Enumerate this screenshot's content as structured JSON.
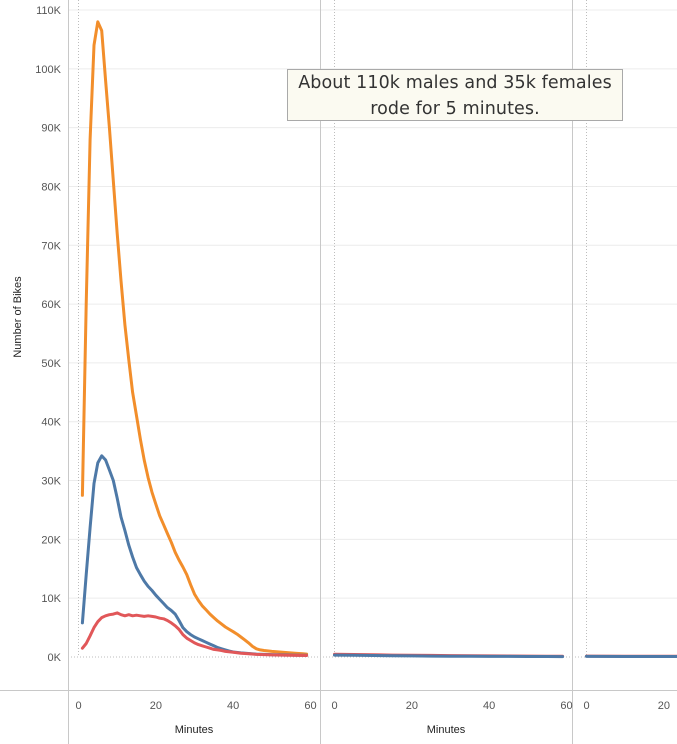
{
  "chart_data": {
    "type": "line",
    "ylabel": "Number of Bikes",
    "y_ticks": [
      "0K",
      "10K",
      "20K",
      "30K",
      "40K",
      "50K",
      "60K",
      "70K",
      "80K",
      "90K",
      "100K",
      "110K"
    ],
    "ylim": [
      0,
      110000
    ],
    "annotation": "About 110k males and 35k females rode for 5 minutes.",
    "colors": {
      "orange": "#f28e2b",
      "blue": "#4e79a7",
      "red": "#e15759"
    },
    "grid": true,
    "panels": [
      {
        "xlabel": "Minutes",
        "x_ticks": [
          "0",
          "20",
          "40",
          "60"
        ],
        "xlim": [
          -1,
          63
        ],
        "series": [
          {
            "color": "orange",
            "points": [
              [
                1,
                27500
              ],
              [
                2,
                60000
              ],
              [
                3,
                88000
              ],
              [
                4,
                104000
              ],
              [
                5,
                108000
              ],
              [
                6,
                106500
              ],
              [
                7,
                98000
              ],
              [
                8,
                90000
              ],
              [
                9,
                81000
              ],
              [
                10,
                72000
              ],
              [
                11,
                64000
              ],
              [
                12,
                56500
              ],
              [
                13,
                50500
              ],
              [
                14,
                45000
              ],
              [
                15,
                41000
              ],
              [
                16,
                37000
              ],
              [
                17,
                33500
              ],
              [
                18,
                30500
              ],
              [
                19,
                28000
              ],
              [
                20,
                26000
              ],
              [
                21,
                24000
              ],
              [
                22,
                22500
              ],
              [
                23,
                21000
              ],
              [
                24,
                19500
              ],
              [
                25,
                17800
              ],
              [
                26,
                16500
              ],
              [
                27,
                15300
              ],
              [
                28,
                14000
              ],
              [
                29,
                12300
              ],
              [
                30,
                10700
              ],
              [
                31,
                9600
              ],
              [
                32,
                8700
              ],
              [
                33,
                8000
              ],
              [
                34,
                7300
              ],
              [
                35,
                6700
              ],
              [
                36,
                6100
              ],
              [
                37,
                5600
              ],
              [
                38,
                5100
              ],
              [
                39,
                4700
              ],
              [
                40,
                4300
              ],
              [
                41,
                3900
              ],
              [
                42,
                3400
              ],
              [
                43,
                2900
              ],
              [
                44,
                2400
              ],
              [
                45,
                1800
              ],
              [
                46,
                1400
              ],
              [
                47,
                1200
              ],
              [
                48,
                1100
              ],
              [
                50,
                950
              ],
              [
                52,
                850
              ],
              [
                54,
                750
              ],
              [
                56,
                650
              ],
              [
                58,
                550
              ],
              [
                59,
                500
              ]
            ]
          },
          {
            "color": "blue",
            "points": [
              [
                1,
                5800
              ],
              [
                2,
                14000
              ],
              [
                3,
                22000
              ],
              [
                4,
                29500
              ],
              [
                5,
                33000
              ],
              [
                6,
                34200
              ],
              [
                7,
                33500
              ],
              [
                8,
                31800
              ],
              [
                9,
                30000
              ],
              [
                10,
                27000
              ],
              [
                11,
                23800
              ],
              [
                12,
                21500
              ],
              [
                13,
                19000
              ],
              [
                14,
                17000
              ],
              [
                15,
                15200
              ],
              [
                16,
                14000
              ],
              [
                17,
                12900
              ],
              [
                18,
                12000
              ],
              [
                19,
                11300
              ],
              [
                20,
                10500
              ],
              [
                21,
                9800
              ],
              [
                22,
                9100
              ],
              [
                23,
                8400
              ],
              [
                24,
                7900
              ],
              [
                25,
                7300
              ],
              [
                26,
                6200
              ],
              [
                27,
                5000
              ],
              [
                28,
                4300
              ],
              [
                29,
                3800
              ],
              [
                30,
                3400
              ],
              [
                31,
                3100
              ],
              [
                32,
                2800
              ],
              [
                33,
                2500
              ],
              [
                34,
                2200
              ],
              [
                35,
                1900
              ],
              [
                36,
                1600
              ],
              [
                37,
                1400
              ],
              [
                38,
                1200
              ],
              [
                39,
                1000
              ],
              [
                40,
                850
              ],
              [
                42,
                700
              ],
              [
                44,
                600
              ],
              [
                46,
                500
              ],
              [
                48,
                450
              ],
              [
                50,
                400
              ],
              [
                52,
                380
              ],
              [
                54,
                350
              ],
              [
                56,
                320
              ],
              [
                58,
                300
              ],
              [
                59,
                300
              ]
            ]
          },
          {
            "color": "red",
            "points": [
              [
                1,
                1500
              ],
              [
                2,
                2300
              ],
              [
                3,
                3600
              ],
              [
                4,
                5000
              ],
              [
                5,
                6000
              ],
              [
                6,
                6700
              ],
              [
                7,
                7000
              ],
              [
                8,
                7200
              ],
              [
                9,
                7300
              ],
              [
                10,
                7500
              ],
              [
                11,
                7200
              ],
              [
                12,
                7000
              ],
              [
                13,
                7200
              ],
              [
                14,
                7000
              ],
              [
                15,
                7100
              ],
              [
                16,
                7000
              ],
              [
                17,
                6900
              ],
              [
                18,
                7000
              ],
              [
                19,
                6900
              ],
              [
                20,
                6800
              ],
              [
                21,
                6600
              ],
              [
                22,
                6500
              ],
              [
                23,
                6200
              ],
              [
                24,
                5800
              ],
              [
                25,
                5300
              ],
              [
                26,
                4700
              ],
              [
                27,
                3800
              ],
              [
                28,
                3200
              ],
              [
                29,
                2800
              ],
              [
                30,
                2400
              ],
              [
                31,
                2100
              ],
              [
                32,
                1900
              ],
              [
                33,
                1700
              ],
              [
                34,
                1500
              ],
              [
                35,
                1300
              ],
              [
                36,
                1200
              ],
              [
                37,
                1100
              ],
              [
                38,
                950
              ],
              [
                40,
                800
              ],
              [
                42,
                650
              ],
              [
                44,
                550
              ],
              [
                46,
                450
              ],
              [
                48,
                400
              ],
              [
                50,
                350
              ],
              [
                54,
                300
              ],
              [
                59,
                250
              ]
            ]
          }
        ]
      },
      {
        "xlabel": "Minutes",
        "x_ticks": [
          "0",
          "20",
          "40",
          "60"
        ],
        "xlim": [
          -1,
          63
        ],
        "series": [
          {
            "color": "red",
            "points": [
              [
                0,
                480
              ],
              [
                5,
                430
              ],
              [
                10,
                380
              ],
              [
                15,
                330
              ],
              [
                20,
                300
              ],
              [
                25,
                270
              ],
              [
                30,
                240
              ],
              [
                35,
                210
              ],
              [
                40,
                190
              ],
              [
                45,
                170
              ],
              [
                50,
                150
              ],
              [
                55,
                140
              ],
              [
                59,
                130
              ]
            ]
          },
          {
            "color": "blue",
            "points": [
              [
                0,
                330
              ],
              [
                5,
                300
              ],
              [
                10,
                260
              ],
              [
                15,
                220
              ],
              [
                20,
                190
              ],
              [
                25,
                160
              ],
              [
                30,
                140
              ],
              [
                35,
                120
              ],
              [
                40,
                110
              ],
              [
                45,
                100
              ],
              [
                50,
                90
              ],
              [
                55,
                80
              ],
              [
                59,
                70
              ]
            ]
          }
        ]
      },
      {
        "xlabel": "",
        "x_ticks": [
          "0",
          "20"
        ],
        "xlim": [
          -1,
          63
        ],
        "series": [
          {
            "color": "red",
            "points": [
              [
                0,
                150
              ],
              [
                10,
                140
              ],
              [
                20,
                130
              ],
              [
                25,
                125
              ]
            ]
          },
          {
            "color": "blue",
            "points": [
              [
                0,
                100
              ],
              [
                10,
                90
              ],
              [
                20,
                85
              ],
              [
                25,
                80
              ]
            ]
          }
        ]
      }
    ]
  }
}
